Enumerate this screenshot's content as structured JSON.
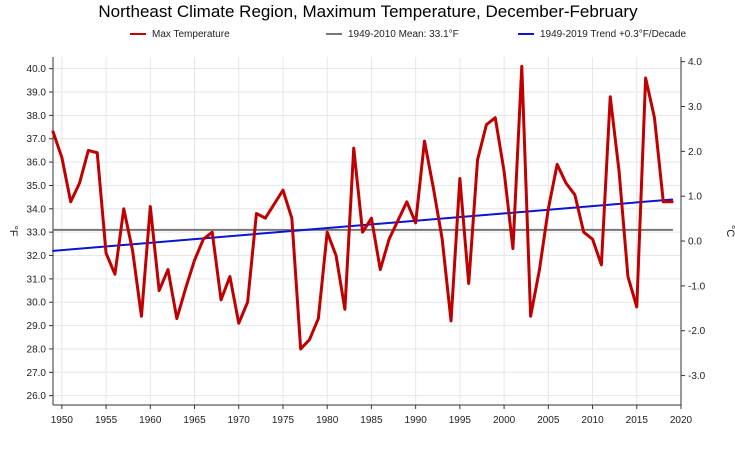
{
  "chart_data": {
    "type": "line",
    "title": "Northeast Climate Region, Maximum Temperature, December-February",
    "ylabel_left": "°F",
    "ylabel_right": "°C",
    "xlim": [
      1949,
      2020
    ],
    "ylim": [
      25.6,
      40.5
    ],
    "grid": true,
    "legend_position": "top",
    "x_ticks": [
      1950,
      1955,
      1960,
      1965,
      1970,
      1975,
      1980,
      1985,
      1990,
      1995,
      2000,
      2005,
      2010,
      2015,
      2020
    ],
    "y_ticks_left": [
      "26.0",
      "27.0",
      "28.0",
      "29.0",
      "30.0",
      "31.0",
      "32.0",
      "33.0",
      "34.0",
      "35.0",
      "36.0",
      "37.0",
      "38.0",
      "39.0",
      "40.0"
    ],
    "y_ticks_right": [
      {
        "label": "4.0",
        "f": 40.3
      },
      {
        "label": "3.0",
        "f": 38.38
      },
      {
        "label": "2.0",
        "f": 36.46
      },
      {
        "label": "1.0",
        "f": 34.54
      },
      {
        "label": "0.0",
        "f": 32.62
      },
      {
        "label": "-1.0",
        "f": 30.7
      },
      {
        "label": "-2.0",
        "f": 28.78
      },
      {
        "label": "-3.0",
        "f": 26.86
      }
    ],
    "series": [
      {
        "name": "Max Temperature",
        "color": "#c00000",
        "x": [
          1949,
          1950,
          1951,
          1952,
          1953,
          1954,
          1955,
          1956,
          1957,
          1958,
          1959,
          1960,
          1961,
          1962,
          1963,
          1964,
          1965,
          1966,
          1967,
          1968,
          1969,
          1970,
          1971,
          1972,
          1973,
          1974,
          1975,
          1976,
          1977,
          1978,
          1979,
          1980,
          1981,
          1982,
          1983,
          1984,
          1985,
          1986,
          1987,
          1988,
          1989,
          1990,
          1991,
          1992,
          1993,
          1994,
          1995,
          1996,
          1997,
          1998,
          1999,
          2000,
          2001,
          2002,
          2003,
          2004,
          2005,
          2006,
          2007,
          2008,
          2009,
          2010,
          2011,
          2012,
          2013,
          2014,
          2015,
          2016,
          2017,
          2018,
          2019
        ],
        "values": [
          37.3,
          36.2,
          34.3,
          35.1,
          36.5,
          36.4,
          32.1,
          31.2,
          34.0,
          32.2,
          29.4,
          34.1,
          30.5,
          31.4,
          29.3,
          30.6,
          31.8,
          32.7,
          33.0,
          30.1,
          31.1,
          29.1,
          30.0,
          33.8,
          33.6,
          34.2,
          34.8,
          33.6,
          28.0,
          28.4,
          29.3,
          33.0,
          32.0,
          29.7,
          36.6,
          33.0,
          33.6,
          31.4,
          32.7,
          33.5,
          34.3,
          33.4,
          36.9,
          34.9,
          32.7,
          29.2,
          35.3,
          30.8,
          36.1,
          37.6,
          37.9,
          35.6,
          32.3,
          40.1,
          29.4,
          31.4,
          34.0,
          35.9,
          35.1,
          34.6,
          33.0,
          32.7,
          31.6,
          38.8,
          35.6,
          31.1,
          29.8,
          39.6,
          37.9,
          34.3,
          34.3
        ]
      },
      {
        "name": "1949-2010 Mean: 33.1°F",
        "color": "#777777",
        "x": [
          1949,
          2019
        ],
        "values": [
          33.1,
          33.1
        ]
      },
      {
        "name": "1949-2019 Trend +0.3°F/Decade",
        "color": "#0a14d2",
        "x": [
          1949,
          2019
        ],
        "values": [
          32.2,
          34.4
        ]
      }
    ]
  }
}
